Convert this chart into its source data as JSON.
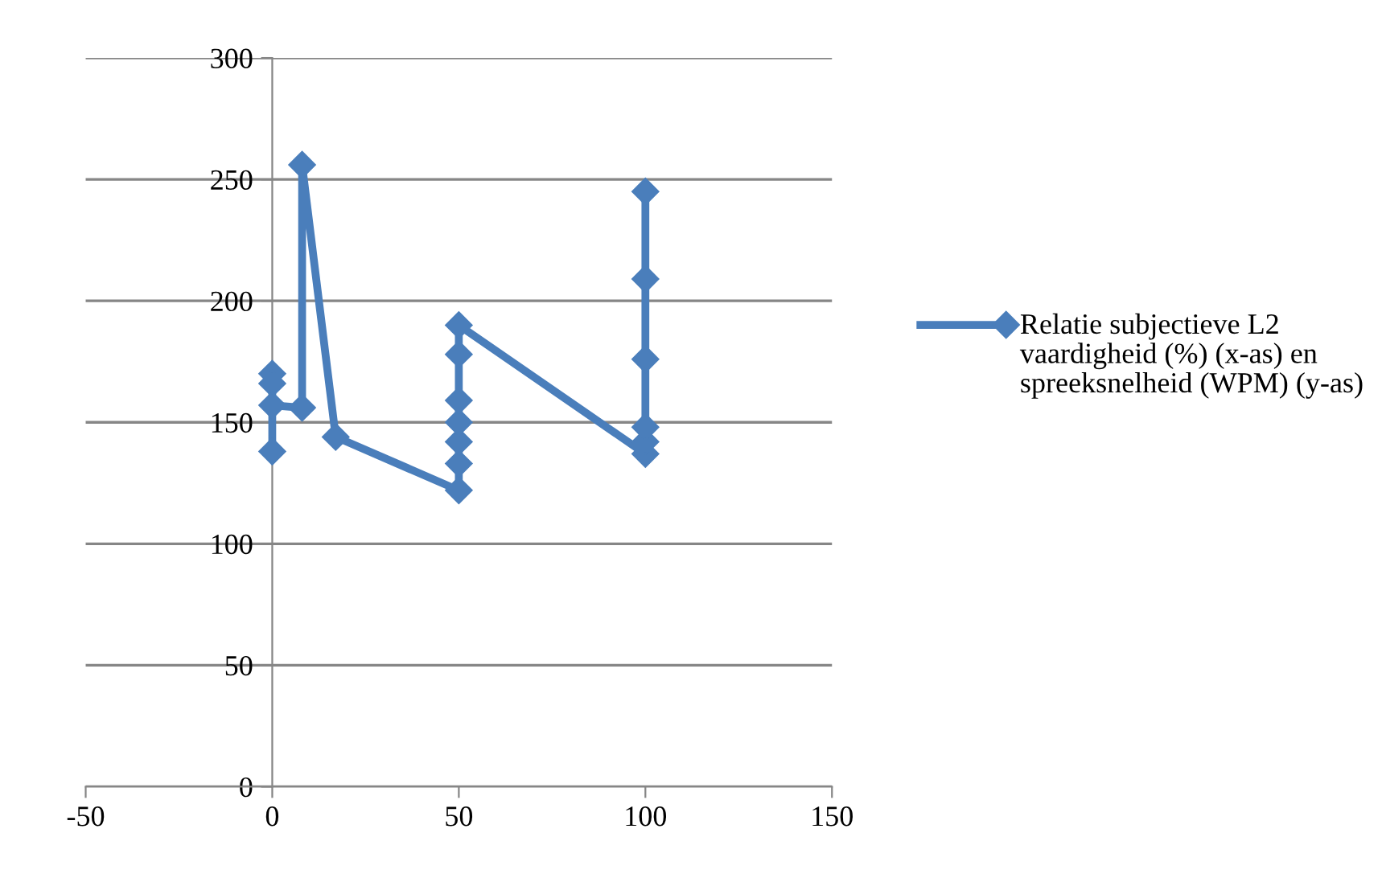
{
  "chart_data": {
    "type": "line",
    "series": [
      {
        "name": "Relatie subjectieve L2 vaardigheid (%) (x-as) en spreeksnelheid (WPM) (y-as)",
        "color": "#4a7ebb",
        "x": [
          0,
          0,
          0,
          0,
          8,
          8,
          17,
          50,
          50,
          50,
          50,
          50,
          50,
          50,
          100,
          100,
          100,
          100,
          100,
          100
        ],
        "values": [
          138,
          170,
          166,
          157,
          156,
          256,
          144,
          122,
          133,
          142,
          150,
          159,
          178,
          190,
          137,
          142,
          148,
          176,
          209,
          245
        ]
      }
    ],
    "xlim": [
      -50,
      150
    ],
    "xticks": [
      -50,
      0,
      50,
      100,
      150
    ],
    "ylim": [
      0,
      300
    ],
    "yticks": [
      0,
      50,
      100,
      150,
      200,
      250,
      300
    ],
    "grid": "y",
    "legend": "right",
    "marker": "diamond",
    "line_style": "solid"
  }
}
